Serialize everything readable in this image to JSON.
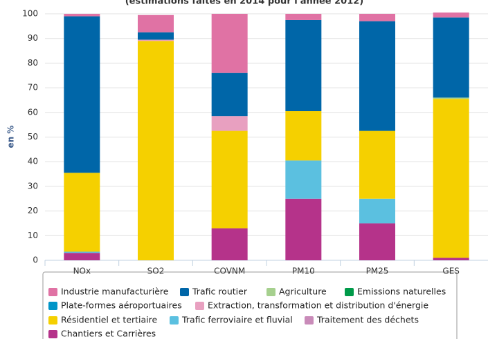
{
  "chart_data": {
    "type": "stacked_bar",
    "subtitle": "(estimations faites en 2014 pour l'année 2012)",
    "y_label": "en %",
    "categories": [
      "NOx",
      "SO2",
      "COVNM",
      "PM10",
      "PM25",
      "GES"
    ],
    "ylim": [
      0,
      100
    ],
    "yticks": [
      0,
      10,
      20,
      30,
      40,
      50,
      60,
      70,
      80,
      90,
      100
    ],
    "grid": true,
    "series": [
      {
        "name": "Chantiers et Carrières",
        "color": "#b5338a",
        "values": [
          3,
          0,
          13,
          25,
          15,
          1
        ]
      },
      {
        "name": "Traitement des déchets",
        "color": "#c98bb9",
        "values": [
          0,
          0,
          0,
          0,
          0,
          0
        ]
      },
      {
        "name": "Trafic ferroviaire et fluvial",
        "color": "#5bc0e0",
        "values": [
          0.5,
          0,
          0,
          15.5,
          10,
          0
        ]
      },
      {
        "name": "Résidentiel et tertiaire",
        "color": "#f5d000",
        "values": [
          32,
          89,
          39.5,
          20,
          27.5,
          64.5
        ]
      },
      {
        "name": "Extraction, transformation et distribution d'énergie",
        "color": "#e8a0c0",
        "values": [
          0,
          0.5,
          6,
          0,
          0,
          0
        ]
      },
      {
        "name": "Plate-formes aéroportuaires",
        "color": "#0095c8",
        "values": [
          0,
          0,
          0,
          0,
          0,
          0
        ]
      },
      {
        "name": "Emissions naturelles",
        "color": "#009a49",
        "values": [
          0,
          0,
          0,
          0,
          0,
          0
        ]
      },
      {
        "name": "Agriculture",
        "color": "#a6d08e",
        "values": [
          0,
          0,
          0,
          0,
          0,
          0.5
        ]
      },
      {
        "name": "Trafic routier",
        "color": "#0066a8",
        "values": [
          63.5,
          3,
          17.5,
          37,
          44.5,
          32.5
        ]
      },
      {
        "name": "Industrie manufacturière",
        "color": "#e072a4",
        "values": [
          1,
          7,
          24,
          2.5,
          3,
          2
        ]
      }
    ]
  }
}
